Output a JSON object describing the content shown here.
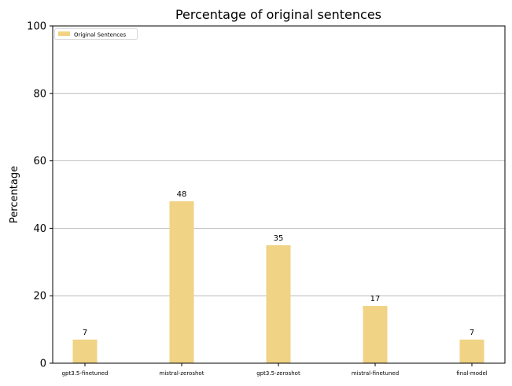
{
  "chart_data": {
    "type": "bar",
    "title": "Percentage of original sentences",
    "xlabel": "",
    "ylabel": "Percentage",
    "categories": [
      "gpt3.5-finetuned",
      "mistral-zeroshot",
      "gpt3.5-zeroshot",
      "mistral-finetuned",
      "final-model"
    ],
    "series": [
      {
        "name": "Original Sentences",
        "values": [
          7,
          48,
          35,
          17,
          7
        ],
        "color": "#f0d384"
      }
    ],
    "ylim": [
      0,
      100
    ],
    "yticks": [
      0,
      20,
      40,
      60,
      80,
      100
    ],
    "grid": "y",
    "grid_color": "#b0b0b0",
    "legend_position": "top-left",
    "data_labels": [
      "7",
      "48",
      "35",
      "17",
      "7"
    ]
  }
}
